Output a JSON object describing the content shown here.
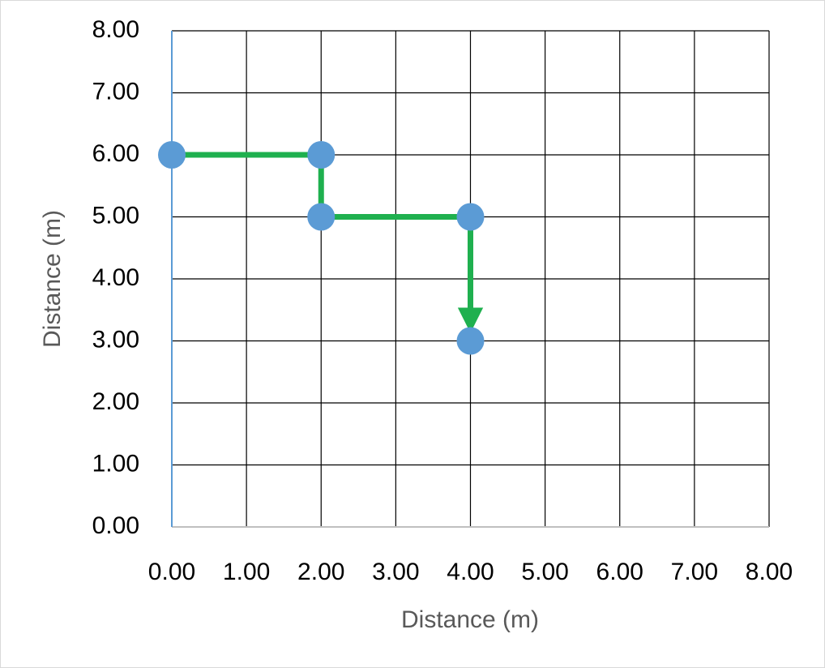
{
  "chart_data": {
    "type": "scatter-line",
    "x_label": "Distance (m)",
    "y_label": "Distance (m)",
    "x": [
      0,
      2,
      2,
      4,
      4
    ],
    "values": [
      6,
      6,
      5,
      5,
      3
    ],
    "color": "#5b9bd5",
    "line_color": "#1fb04f",
    "arrow_end": true,
    "xlim": [
      0,
      8
    ],
    "ylim": [
      0,
      8
    ],
    "xticks": [
      {
        "value": 0,
        "label": "0.00"
      },
      {
        "value": 1,
        "label": "1.00"
      },
      {
        "value": 2,
        "label": "2.00"
      },
      {
        "value": 3,
        "label": "3.00"
      },
      {
        "value": 4,
        "label": "4.00"
      },
      {
        "value": 5,
        "label": "5.00"
      },
      {
        "value": 6,
        "label": "6.00"
      },
      {
        "value": 7,
        "label": "7.00"
      },
      {
        "value": 8,
        "label": "8.00"
      }
    ],
    "yticks": [
      {
        "value": 0,
        "label": "0.00"
      },
      {
        "value": 1,
        "label": "1.00"
      },
      {
        "value": 2,
        "label": "2.00"
      },
      {
        "value": 3,
        "label": "3.00"
      },
      {
        "value": 4,
        "label": "4.00"
      },
      {
        "value": 5,
        "label": "5.00"
      },
      {
        "value": 6,
        "label": "6.00"
      },
      {
        "value": 7,
        "label": "7.00"
      },
      {
        "value": 8,
        "label": "8.00"
      }
    ],
    "grid": true
  }
}
